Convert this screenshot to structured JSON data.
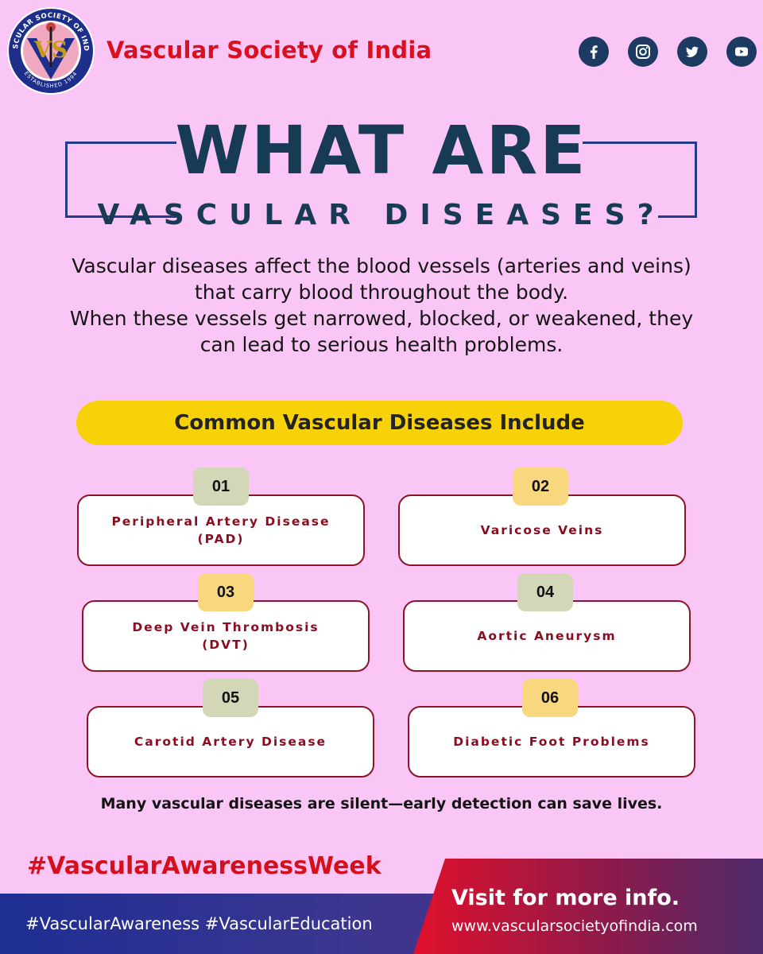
{
  "header": {
    "org_name": "Vascular Society of India",
    "logo_text": "VASCULAR SOCIETY OF INDIA",
    "logo_established": "ESTABLISHED 1994",
    "logo_monogram": "VS"
  },
  "socials": [
    {
      "name": "facebook-icon",
      "glyph": "f"
    },
    {
      "name": "instagram-icon"
    },
    {
      "name": "twitter-icon"
    },
    {
      "name": "youtube-icon"
    }
  ],
  "title": {
    "line1": "WHAT ARE",
    "line2": "VASCULAR DISEASES?"
  },
  "intro": {
    "line1": "Vascular diseases affect the blood vessels (arteries and veins)",
    "line2": "that carry blood throughout the body.",
    "line3": "When these vessels get narrowed, blocked, or weakened, they",
    "line4": "can lead to serious health problems."
  },
  "section_heading": "Common Vascular Diseases Include",
  "diseases": [
    {
      "num": "01",
      "label": "Peripheral Artery Disease (PAD)"
    },
    {
      "num": "02",
      "label": "Varicose Veins"
    },
    {
      "num": "03",
      "label": "Deep Vein Thrombosis (DVT)"
    },
    {
      "num": "04",
      "label": "Aortic Aneurysm"
    },
    {
      "num": "05",
      "label": "Carotid Artery Disease"
    },
    {
      "num": "06",
      "label": "Diabetic Foot Problems"
    }
  ],
  "note": "Many vascular diseases are silent—early detection can save lives.",
  "footer": {
    "hashtag_main": "#VascularAwarenessWeek",
    "hashtags": "#VascularAwareness #VascularEducation",
    "visit": "Visit for more info.",
    "url": "www.vascularsocietyofindia.com"
  },
  "colors": {
    "background": "#f9c6f5",
    "brand_red": "#d8101f",
    "title_navy": "#173a55",
    "pill_yellow": "#f8d208",
    "card_maroon": "#8a0e22",
    "footer_blue": "#1e2e93"
  }
}
